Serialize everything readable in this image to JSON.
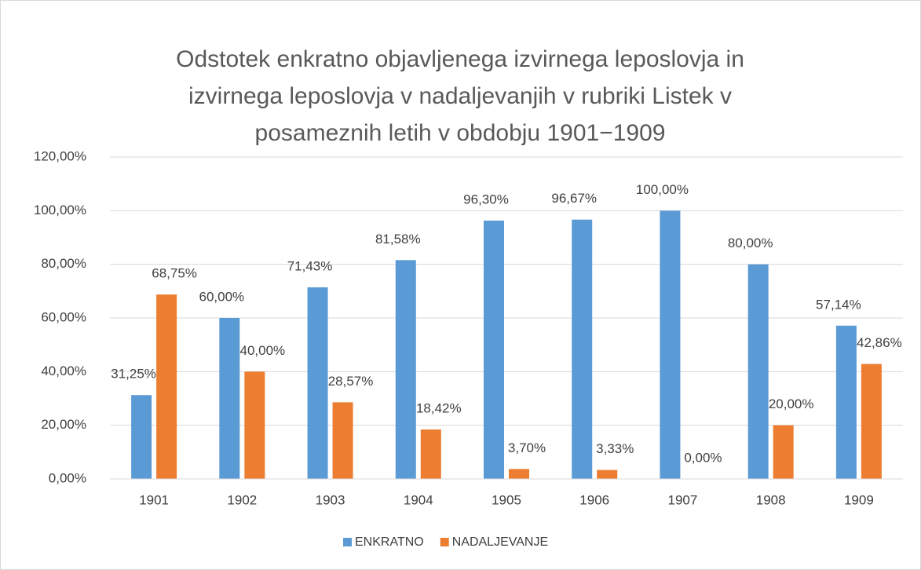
{
  "chart_data": {
    "type": "bar",
    "title": "Odstotek enkratno objavljenega izvirnega leposlovja in izvirnega leposlovja v nadaljevanjih v rubriki Listek v posameznih letih v obdobju 1901−1909",
    "categories": [
      "1901",
      "1902",
      "1903",
      "1904",
      "1905",
      "1906",
      "1907",
      "1908",
      "1909"
    ],
    "series": [
      {
        "name": "ENKRATNO",
        "color": "#5b9bd5",
        "values": [
          31.25,
          60,
          71.43,
          81.58,
          96.3,
          96.67,
          100,
          80,
          57.14
        ],
        "value_labels": [
          "31,25%",
          "60,00%",
          "71,43%",
          "81,58%",
          "96,30%",
          "96,67%",
          "100,00%",
          "80,00%",
          "57,14%"
        ]
      },
      {
        "name": "NADALJEVANJE",
        "color": "#ed7d31",
        "values": [
          68.75,
          40,
          28.57,
          18.42,
          3.7,
          3.33,
          0,
          20,
          42.86
        ],
        "value_labels": [
          "68,75%",
          "40,00%",
          "28,57%",
          "18,42%",
          "3,70%",
          "3,33%",
          "0,00%",
          "20,00%",
          "42,86%"
        ]
      }
    ],
    "ylim": [
      0,
      120
    ],
    "yticks": [
      {
        "value": 0,
        "label": "0,00%"
      },
      {
        "value": 20,
        "label": "20,00%"
      },
      {
        "value": 40,
        "label": "40,00%"
      },
      {
        "value": 60,
        "label": "60,00%"
      },
      {
        "value": 80,
        "label": "80,00%"
      },
      {
        "value": 100,
        "label": "100,00%"
      },
      {
        "value": 120,
        "label": "120,00%"
      }
    ],
    "grid": true,
    "legend": "bottom"
  }
}
